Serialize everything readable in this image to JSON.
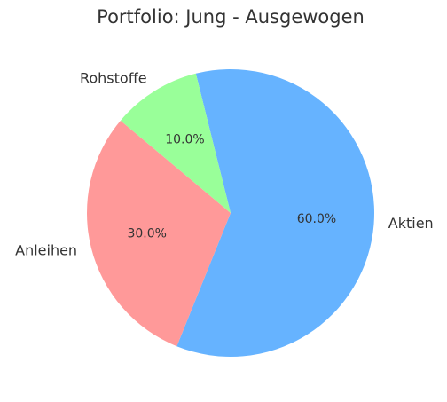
{
  "chart_data": {
    "type": "pie",
    "title": "Portfolio: Jung - Ausgewogen",
    "categories": [
      "Aktien",
      "Anleihen",
      "Rohstoffe"
    ],
    "values": [
      60,
      30,
      10
    ],
    "value_labels": [
      "60.0%",
      "30.0%",
      "10.0%"
    ],
    "colors": [
      "#66b3ff",
      "#ff9999",
      "#99ff99"
    ]
  }
}
